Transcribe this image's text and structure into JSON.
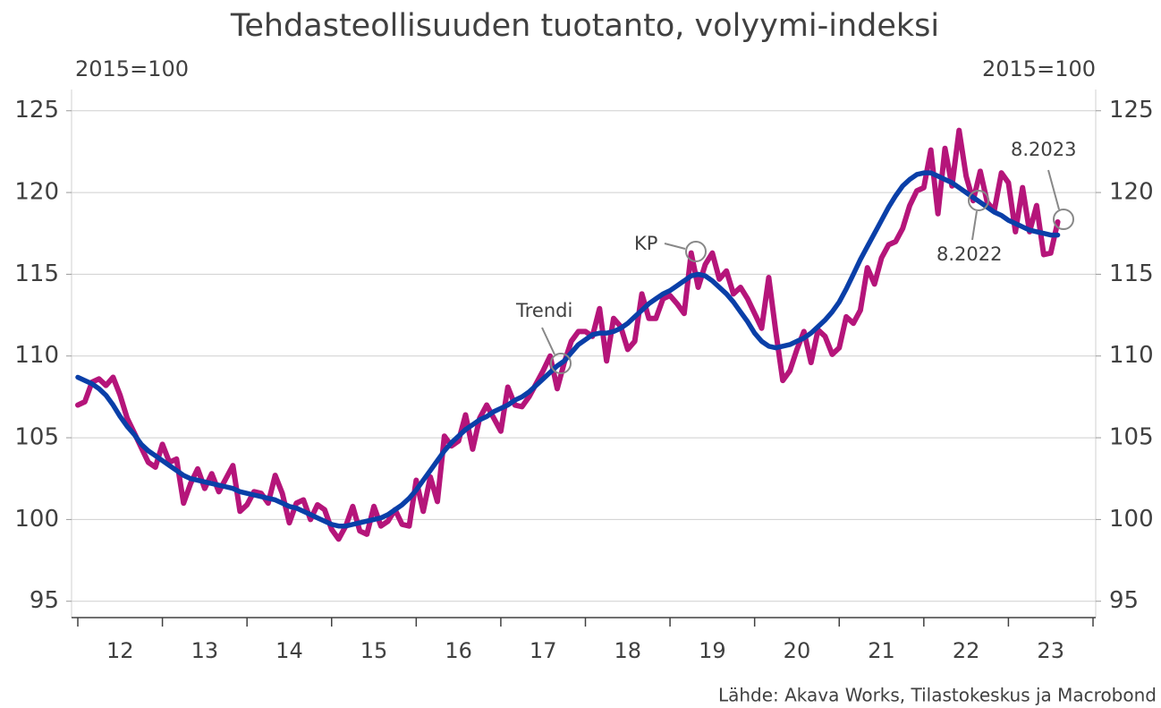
{
  "chart_data": {
    "type": "line",
    "title": "Tehdasteollisuuden tuotanto, volyymi-indeksi",
    "y_label": "2015=100",
    "y2_label": "2015=100",
    "source": "Lähde: Akava Works, Tilastokeskus ja Macrobond",
    "annotations": [
      "Trendi",
      "KP",
      "8.2022",
      "8.2023"
    ],
    "x": [
      2012.0,
      2012.083,
      2012.167,
      2012.25,
      2012.333,
      2012.417,
      2012.5,
      2012.583,
      2012.667,
      2012.75,
      2012.833,
      2012.917,
      2013.0,
      2013.083,
      2013.167,
      2013.25,
      2013.333,
      2013.417,
      2013.5,
      2013.583,
      2013.667,
      2013.75,
      2013.833,
      2013.917,
      2014.0,
      2014.083,
      2014.167,
      2014.25,
      2014.333,
      2014.417,
      2014.5,
      2014.583,
      2014.667,
      2014.75,
      2014.833,
      2014.917,
      2015.0,
      2015.083,
      2015.167,
      2015.25,
      2015.333,
      2015.417,
      2015.5,
      2015.583,
      2015.667,
      2015.75,
      2015.833,
      2015.917,
      2016.0,
      2016.083,
      2016.167,
      2016.25,
      2016.333,
      2016.417,
      2016.5,
      2016.583,
      2016.667,
      2016.75,
      2016.833,
      2016.917,
      2017.0,
      2017.083,
      2017.167,
      2017.25,
      2017.333,
      2017.417,
      2017.5,
      2017.583,
      2017.667,
      2017.75,
      2017.833,
      2017.917,
      2018.0,
      2018.083,
      2018.167,
      2018.25,
      2018.333,
      2018.417,
      2018.5,
      2018.583,
      2018.667,
      2018.75,
      2018.833,
      2018.917,
      2019.0,
      2019.083,
      2019.167,
      2019.25,
      2019.333,
      2019.417,
      2019.5,
      2019.583,
      2019.667,
      2019.75,
      2019.833,
      2019.917,
      2020.0,
      2020.083,
      2020.167,
      2020.25,
      2020.333,
      2020.417,
      2020.5,
      2020.583,
      2020.667,
      2020.75,
      2020.833,
      2020.917,
      2021.0,
      2021.083,
      2021.167,
      2021.25,
      2021.333,
      2021.417,
      2021.5,
      2021.583,
      2021.667,
      2021.75,
      2021.833,
      2021.917,
      2022.0,
      2022.083,
      2022.167,
      2022.25,
      2022.333,
      2022.417,
      2022.5,
      2022.583,
      2022.667,
      2022.75,
      2022.833,
      2022.917,
      2023.0,
      2023.083,
      2023.167,
      2023.25,
      2023.333,
      2023.417,
      2023.5,
      2023.583
    ],
    "series": [
      {
        "color": "#b5157a",
        "values": [
          107.0,
          107.2,
          108.4,
          108.6,
          108.2,
          108.7,
          107.6,
          106.2,
          105.3,
          104.4,
          103.5,
          103.2,
          104.6,
          103.5,
          103.7,
          101.0,
          102.2,
          103.1,
          101.9,
          102.8,
          101.7,
          102.5,
          103.3,
          100.5,
          100.9,
          101.7,
          101.6,
          101.0,
          102.7,
          101.6,
          99.8,
          101.0,
          101.2,
          100.0,
          100.9,
          100.6,
          99.4,
          98.8,
          99.6,
          100.8,
          99.3,
          99.1,
          100.8,
          99.6,
          99.9,
          100.6,
          99.7,
          99.6,
          102.4,
          100.5,
          102.6,
          101.1,
          105.1,
          104.5,
          104.8,
          106.4,
          104.3,
          106.2,
          107.0,
          106.2,
          105.4,
          108.1,
          107.0,
          106.9,
          107.5,
          108.3,
          109.1,
          110.0,
          108.0,
          109.6,
          110.9,
          111.5,
          111.5,
          111.2,
          112.9,
          109.7,
          112.3,
          111.8,
          110.4,
          110.9,
          113.8,
          112.3,
          112.3,
          113.5,
          113.7,
          113.2,
          112.6,
          116.3,
          114.2,
          115.6,
          116.3,
          114.7,
          115.2,
          113.8,
          114.2,
          113.5,
          112.6,
          111.7,
          114.8,
          111.5,
          108.5,
          109.1,
          110.4,
          111.5,
          109.6,
          111.6,
          111.2,
          110.1,
          110.5,
          112.4,
          112.0,
          112.8,
          115.4,
          114.4,
          116.0,
          116.8,
          117.0,
          117.8,
          119.2,
          120.1,
          120.3,
          122.6,
          118.7,
          122.7,
          120.4,
          123.8,
          121.0,
          119.5,
          121.3,
          119.4,
          118.9,
          121.2,
          120.6,
          117.6,
          120.3,
          117.6,
          119.2,
          116.2,
          116.3,
          118.2
        ]
      },
      {
        "color": "#0a3fa8",
        "values": [
          108.7,
          108.5,
          108.3,
          108.0,
          107.6,
          107.0,
          106.3,
          105.7,
          105.2,
          104.6,
          104.2,
          103.9,
          103.6,
          103.3,
          103.0,
          102.7,
          102.5,
          102.4,
          102.3,
          102.2,
          102.1,
          102.0,
          101.9,
          101.7,
          101.6,
          101.5,
          101.4,
          101.3,
          101.2,
          101.0,
          100.8,
          100.7,
          100.5,
          100.3,
          100.1,
          99.9,
          99.7,
          99.6,
          99.6,
          99.7,
          99.8,
          99.9,
          100.0,
          100.1,
          100.3,
          100.6,
          100.9,
          101.3,
          101.8,
          102.4,
          103.0,
          103.6,
          104.2,
          104.7,
          105.1,
          105.5,
          105.8,
          106.1,
          106.3,
          106.6,
          106.8,
          107.0,
          107.3,
          107.5,
          107.8,
          108.2,
          108.6,
          109.0,
          109.4,
          109.7,
          110.2,
          110.7,
          111.0,
          111.3,
          111.4,
          111.4,
          111.5,
          111.7,
          112.0,
          112.4,
          112.8,
          113.2,
          113.5,
          113.8,
          114.0,
          114.3,
          114.6,
          114.9,
          115.0,
          114.9,
          114.6,
          114.2,
          113.8,
          113.3,
          112.7,
          112.1,
          111.4,
          110.9,
          110.6,
          110.5,
          110.6,
          110.7,
          110.9,
          111.1,
          111.4,
          111.8,
          112.2,
          112.7,
          113.3,
          114.1,
          115.0,
          115.9,
          116.7,
          117.5,
          118.3,
          119.1,
          119.8,
          120.4,
          120.8,
          121.1,
          121.2,
          121.2,
          121.0,
          120.8,
          120.6,
          120.3,
          120.0,
          119.7,
          119.4,
          119.1,
          118.8,
          118.6,
          118.3,
          118.1,
          117.9,
          117.7,
          117.6,
          117.5,
          117.4,
          117.4
        ]
      }
    ],
    "xlim": [
      2012,
      2024
    ],
    "xticks": [
      {
        "value": 2012.5,
        "label": "12"
      },
      {
        "value": 2013.5,
        "label": "13"
      },
      {
        "value": 2014.5,
        "label": "14"
      },
      {
        "value": 2015.5,
        "label": "15"
      },
      {
        "value": 2016.5,
        "label": "16"
      },
      {
        "value": 2017.5,
        "label": "17"
      },
      {
        "value": 2018.5,
        "label": "18"
      },
      {
        "value": 2019.5,
        "label": "19"
      },
      {
        "value": 2020.5,
        "label": "20"
      },
      {
        "value": 2021.5,
        "label": "21"
      },
      {
        "value": 2022.5,
        "label": "22"
      },
      {
        "value": 2023.5,
        "label": "23"
      }
    ],
    "ylim": [
      94,
      126.3
    ],
    "yticks": [
      95,
      100,
      105,
      110,
      115,
      120,
      125
    ],
    "y2lim": [
      94,
      126.3
    ],
    "y2ticks": [
      95,
      100,
      105,
      110,
      115,
      120,
      125
    ],
    "grid": true
  }
}
